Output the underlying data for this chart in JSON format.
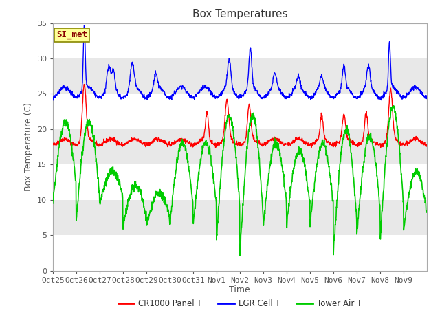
{
  "title": "Box Temperatures",
  "ylabel": "Box Temperature (C)",
  "xlabel": "Time",
  "ylim": [
    0,
    35
  ],
  "yticks": [
    0,
    5,
    10,
    15,
    20,
    25,
    30,
    35
  ],
  "xtick_labels": [
    "Oct 25",
    "Oct 26",
    "Oct 27",
    "Oct 28",
    "Oct 29",
    "Oct 30",
    "Oct 31",
    "Nov 1",
    "Nov 2",
    "Nov 3",
    "Nov 4",
    "Nov 5",
    "Nov 6",
    "Nov 7",
    "Nov 8",
    "Nov 9"
  ],
  "bg_color": "#e8e8e8",
  "gray_band_ranges": [
    [
      5,
      10
    ],
    [
      15,
      20
    ],
    [
      25,
      30
    ]
  ],
  "si_met_label": "SI_met",
  "legend_labels": [
    "CR1000 Panel T",
    "LGR Cell T",
    "Tower Air T"
  ],
  "legend_colors": [
    "#ff0000",
    "#0000ff",
    "#00cc00"
  ],
  "line_colors": [
    "#ff0000",
    "#0000ff",
    "#00cc00"
  ],
  "title_fontsize": 11,
  "axis_label_fontsize": 9,
  "tick_fontsize": 8
}
